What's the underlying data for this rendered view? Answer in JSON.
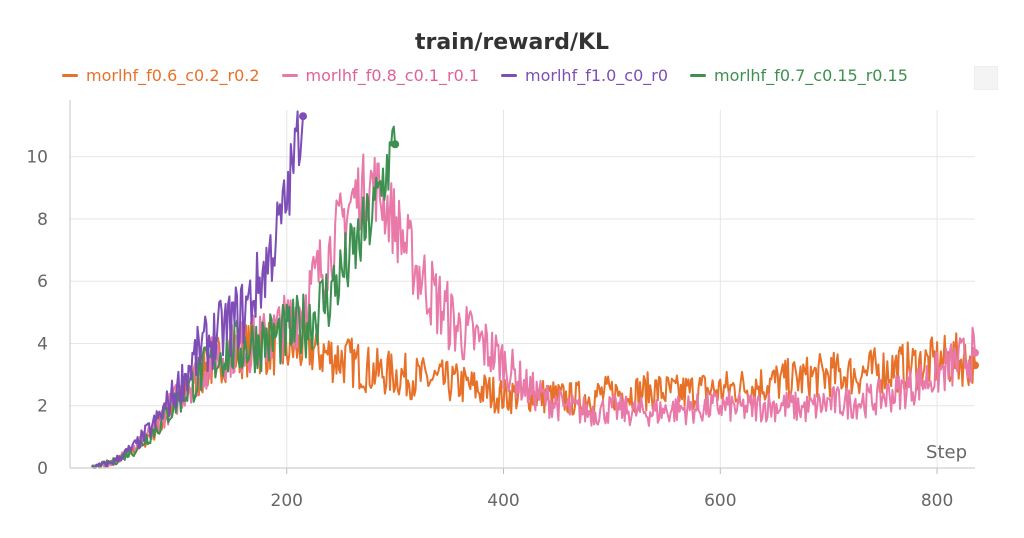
{
  "chart_data": {
    "type": "line",
    "title": "train/reward/KL",
    "xlabel": "Step",
    "ylabel": "",
    "xlim": [
      0,
      835
    ],
    "ylim": [
      0,
      11.5
    ],
    "xticks": [
      200,
      400,
      600,
      800
    ],
    "yticks": [
      0,
      2,
      4,
      6,
      8,
      10
    ],
    "grid": true,
    "legend_position": "top",
    "series": [
      {
        "name": "morlhf_f0.6_c0.2_r0.2",
        "color": "#e8712a",
        "x": [
          20,
          40,
          60,
          80,
          100,
          120,
          140,
          160,
          180,
          200,
          220,
          240,
          260,
          280,
          300,
          320,
          340,
          360,
          380,
          400,
          420,
          440,
          460,
          480,
          500,
          520,
          540,
          560,
          580,
          600,
          620,
          640,
          660,
          680,
          700,
          720,
          740,
          760,
          780,
          800,
          820,
          835
        ],
        "y": [
          0.0,
          0.2,
          0.6,
          1.3,
          2.2,
          3.0,
          3.6,
          3.8,
          3.9,
          3.8,
          3.9,
          3.6,
          3.4,
          3.1,
          3.0,
          2.9,
          2.8,
          2.7,
          2.5,
          2.3,
          2.4,
          2.3,
          2.2,
          2.3,
          2.4,
          2.4,
          2.5,
          2.4,
          2.5,
          2.5,
          2.6,
          2.7,
          2.8,
          2.9,
          3.0,
          3.0,
          3.1,
          3.2,
          3.3,
          3.4,
          3.5,
          3.3
        ]
      },
      {
        "name": "morlhf_f0.8_c0.1_r0.1",
        "color": "#e879a8",
        "x": [
          20,
          40,
          60,
          80,
          100,
          120,
          140,
          160,
          180,
          200,
          220,
          240,
          260,
          280,
          300,
          320,
          340,
          360,
          380,
          400,
          420,
          440,
          460,
          480,
          500,
          520,
          540,
          560,
          580,
          600,
          620,
          640,
          660,
          680,
          700,
          720,
          740,
          760,
          780,
          800,
          820,
          835
        ],
        "y": [
          0.0,
          0.2,
          0.6,
          1.4,
          2.3,
          3.1,
          3.7,
          3.9,
          4.1,
          4.6,
          5.6,
          7.0,
          8.6,
          9.2,
          7.9,
          6.4,
          5.3,
          4.4,
          4.0,
          3.4,
          2.6,
          2.2,
          1.9,
          1.8,
          1.9,
          1.8,
          1.8,
          1.9,
          1.9,
          2.0,
          1.9,
          2.0,
          2.0,
          1.9,
          2.1,
          2.1,
          2.2,
          2.4,
          2.7,
          3.0,
          3.4,
          3.7
        ]
      },
      {
        "name": "morlhf_f1.0_c0_r0",
        "color": "#7e4db6",
        "x": [
          20,
          40,
          60,
          80,
          100,
          120,
          140,
          160,
          170,
          180,
          190,
          200,
          205,
          210,
          215
        ],
        "y": [
          0.0,
          0.2,
          0.7,
          1.5,
          2.6,
          3.8,
          4.4,
          5.0,
          5.6,
          6.4,
          7.4,
          8.6,
          9.6,
          10.6,
          11.3
        ]
      },
      {
        "name": "morlhf_f0.7_c0.15_r0.15",
        "color": "#3d9050",
        "x": [
          20,
          40,
          60,
          80,
          100,
          120,
          140,
          160,
          180,
          200,
          220,
          240,
          260,
          280,
          290,
          300
        ],
        "y": [
          0.0,
          0.2,
          0.6,
          1.3,
          2.2,
          3.0,
          3.7,
          3.9,
          4.1,
          4.3,
          4.7,
          5.6,
          6.8,
          8.2,
          9.4,
          10.4
        ]
      }
    ]
  }
}
